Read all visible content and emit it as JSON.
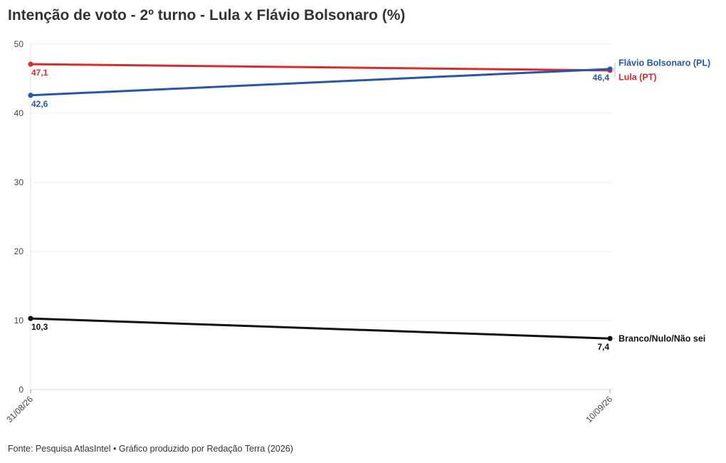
{
  "title": "Intenção de voto - 2º turno - Lula x Flávio Bolsonaro (%)",
  "footer": "Fonte: Pesquisa AtlasIntel • Gráfico produzido por Redação Terra (2026)",
  "chart_data": {
    "type": "line",
    "title": "Intenção de voto - 2º turno - Lula x Flávio Bolsonaro (%)",
    "x": [
      "31/08/26",
      "10/09/26"
    ],
    "ylim": [
      0,
      50
    ],
    "yticks": [
      0,
      10,
      20,
      30,
      40,
      50
    ],
    "grid": true,
    "legend": "right, end of lines",
    "series": [
      {
        "name": "Lula (PT)",
        "values": [
          47.1,
          46.2
        ],
        "labels": [
          "47,1",
          ""
        ],
        "color": "#d32f2f"
      },
      {
        "name": "Flávio Bolsonaro (PL)",
        "values": [
          42.6,
          46.4
        ],
        "labels": [
          "42,6",
          "46,4"
        ],
        "color": "#2a57a5"
      },
      {
        "name": "Branco/Nulo/Não sei",
        "values": [
          10.3,
          7.4
        ],
        "labels": [
          "10,3",
          "7,4"
        ],
        "color": "#111111"
      }
    ]
  }
}
